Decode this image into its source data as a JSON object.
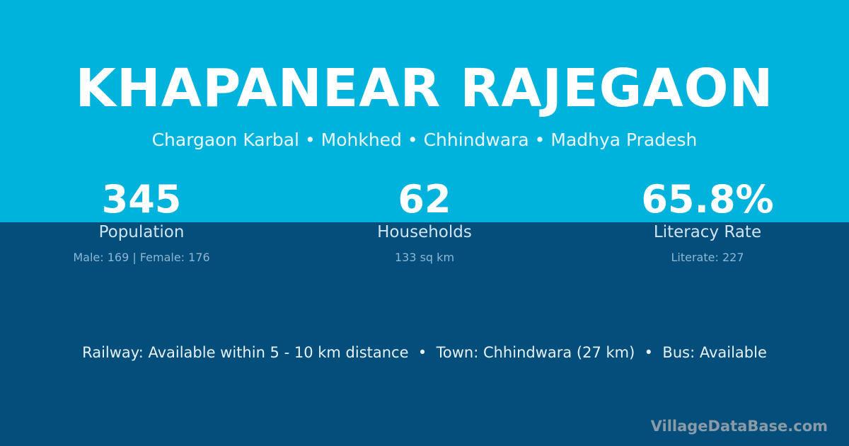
{
  "title": "KHAPANEAR RAJEGAON",
  "breadcrumb": "Chargaon Karbal • Mohkhed • Chhindwara • Madhya Pradesh",
  "stats": [
    {
      "value": "345",
      "label": "Population",
      "detail": "Male: 169 | Female: 176"
    },
    {
      "value": "62",
      "label": "Households",
      "detail": "133 sq km"
    },
    {
      "value": "65.8%",
      "label": "Literacy Rate",
      "detail": "Literate: 227"
    }
  ],
  "info": "Railway: Available within 5 - 10 km distance  •  Town: Chhindwara (27 km)  •  Bus: Available",
  "watermark": "VillageDataBase.com",
  "colors": {
    "top_band": "#00b3dc",
    "background": "#034e7b"
  }
}
